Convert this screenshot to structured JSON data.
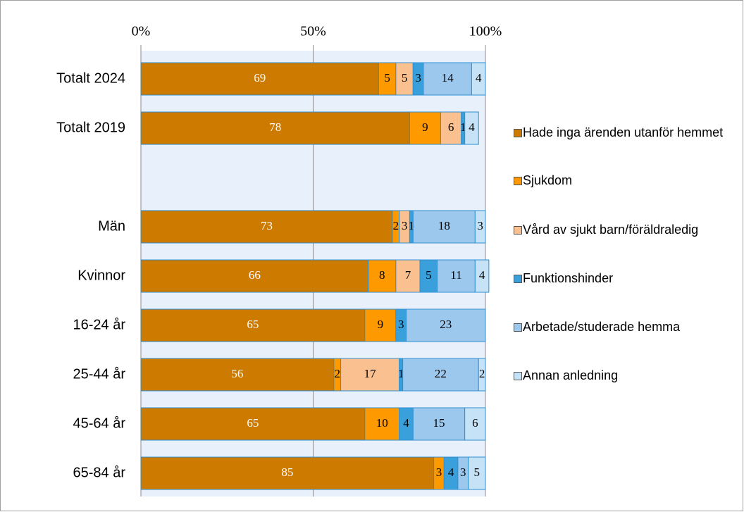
{
  "chart_data": {
    "type": "stacked-barh",
    "categories": [
      "Totalt 2024",
      "Totalt 2019",
      null,
      "Män",
      "Kvinnor",
      "16-24 år",
      "25-44 år",
      "45-64 år",
      "65-84 år"
    ],
    "series": [
      {
        "name": "Hade inga ärenden utanför hemmet",
        "color": "#cc7a00",
        "values": [
          69,
          78,
          null,
          73,
          66,
          65,
          56,
          65,
          85
        ]
      },
      {
        "name": "Sjukdom",
        "color": "#ff9900",
        "values": [
          5,
          9,
          null,
          2,
          8,
          9,
          2,
          10,
          3
        ]
      },
      {
        "name": "Vård av sjukt barn/föräldraledig",
        "color": "#fac090",
        "values": [
          5,
          6,
          null,
          3,
          7,
          null,
          17,
          null,
          null
        ]
      },
      {
        "name": "Funktionshinder",
        "color": "#3aa0dc",
        "values": [
          3,
          1,
          null,
          1,
          5,
          3,
          1,
          4,
          4
        ]
      },
      {
        "name": "Arbetade/studerade hemma",
        "color": "#9cc8ee",
        "values": [
          14,
          null,
          null,
          18,
          11,
          23,
          22,
          15,
          3
        ]
      },
      {
        "name": "Annan anledning",
        "color": "#c6e2f7",
        "values": [
          4,
          4,
          null,
          3,
          4,
          null,
          2,
          6,
          5
        ]
      }
    ],
    "xlim": [
      0,
      100
    ],
    "xticks": [
      {
        "value": 0,
        "label": "0%"
      },
      {
        "value": 50,
        "label": "50%"
      },
      {
        "value": 100,
        "label": "100%"
      }
    ],
    "grid": true,
    "legend": "right"
  }
}
